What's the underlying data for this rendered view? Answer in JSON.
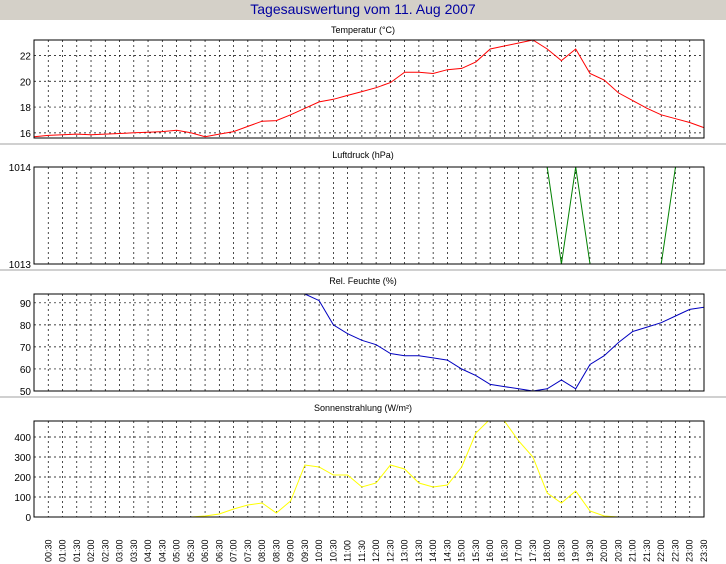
{
  "window": {
    "title": "Tagesauswertung vom 11. Aug 2007"
  },
  "chart_data": [
    {
      "type": "line",
      "title": "Temperatur (°C)",
      "ylim": [
        15.6,
        23.2
      ],
      "yticks": [
        16,
        18,
        20,
        22
      ],
      "grid": true,
      "series": [
        {
          "color": "#ff0000",
          "x": [
            "00:00",
            "00:30",
            "01:00",
            "01:30",
            "02:00",
            "02:30",
            "03:00",
            "03:30",
            "04:00",
            "04:30",
            "05:00",
            "05:30",
            "06:00",
            "06:30",
            "07:00",
            "07:30",
            "08:00",
            "08:30",
            "09:00",
            "09:30",
            "10:00",
            "10:30",
            "11:00",
            "11:30",
            "12:00",
            "12:30",
            "13:00",
            "13:30",
            "14:00",
            "14:30",
            "15:00",
            "15:30",
            "16:00",
            "17:30",
            "18:00",
            "18:30",
            "19:00",
            "19:30",
            "20:00",
            "20:30",
            "21:00",
            "21:30",
            "22:00",
            "22:30",
            "23:00",
            "23:30"
          ],
          "values": [
            15.7,
            15.8,
            15.85,
            15.9,
            15.85,
            15.9,
            15.95,
            16.0,
            16.05,
            16.1,
            16.2,
            16.0,
            15.7,
            15.9,
            16.1,
            16.5,
            16.9,
            16.95,
            17.4,
            17.9,
            18.4,
            18.6,
            18.9,
            19.2,
            19.5,
            19.9,
            20.7,
            20.7,
            20.6,
            20.9,
            21.0,
            21.5,
            22.5,
            23.2,
            22.5,
            21.6,
            22.5,
            20.6,
            20.1,
            19.1,
            18.5,
            17.9,
            17.4,
            17.1,
            16.8,
            16.4
          ]
        }
      ]
    },
    {
      "type": "line",
      "title": "Luftdruck (hPa)",
      "ylim": [
        1013,
        1014
      ],
      "yticks": [
        1013,
        1014
      ],
      "grid": true,
      "series": [
        {
          "color": "#008000",
          "x": [
            "18:00",
            "18:30",
            "19:00",
            "19:30",
            "22:00",
            "22:30"
          ],
          "values": [
            1014,
            1013,
            1014,
            1013,
            1013,
            1014
          ]
        }
      ]
    },
    {
      "type": "line",
      "title": "Rel. Feuchte (%)",
      "ylim": [
        50,
        94
      ],
      "yticks": [
        50,
        60,
        70,
        80,
        90
      ],
      "grid": true,
      "series": [
        {
          "color": "#0000c0",
          "x": [
            "09:30",
            "10:00",
            "10:30",
            "11:00",
            "11:30",
            "12:00",
            "12:30",
            "13:00",
            "13:30",
            "14:00",
            "14:30",
            "15:00",
            "15:30",
            "16:00",
            "16:30",
            "17:00",
            "17:30",
            "18:00",
            "18:30",
            "19:00",
            "19:30",
            "20:00",
            "20:30",
            "21:00",
            "21:30",
            "22:00",
            "22:30",
            "23:00",
            "23:30"
          ],
          "values": [
            94,
            91,
            80,
            76,
            73,
            71,
            67,
            66,
            66,
            65,
            64,
            60,
            57,
            53,
            52,
            51,
            50,
            51,
            55,
            51,
            62,
            66,
            72,
            77,
            79,
            81,
            84,
            87,
            88
          ]
        }
      ]
    },
    {
      "type": "line",
      "title": "Sonnenstrahlung (W/m²)",
      "ylim": [
        0,
        480
      ],
      "yticks": [
        0,
        100,
        200,
        300,
        400
      ],
      "grid": true,
      "series": [
        {
          "color": "#ffff00",
          "x": [
            "05:30",
            "06:00",
            "06:30",
            "07:00",
            "07:30",
            "08:00",
            "08:30",
            "09:00",
            "09:30",
            "10:00",
            "10:30",
            "11:00",
            "11:30",
            "12:00",
            "12:30",
            "13:00",
            "13:30",
            "14:00",
            "14:30",
            "15:00",
            "15:30",
            "16:00",
            "16:30",
            "17:00",
            "17:30",
            "18:00",
            "18:30",
            "19:00",
            "19:30",
            "20:00",
            "20:30"
          ],
          "values": [
            0,
            5,
            15,
            40,
            60,
            70,
            20,
            80,
            260,
            250,
            210,
            210,
            150,
            170,
            260,
            240,
            170,
            150,
            160,
            250,
            420,
            490,
            480,
            380,
            300,
            120,
            70,
            130,
            30,
            5,
            0
          ]
        }
      ]
    }
  ],
  "x_axis": {
    "ticks": [
      "00:30",
      "01:00",
      "01:30",
      "02:00",
      "02:30",
      "03:00",
      "03:30",
      "04:00",
      "04:30",
      "05:00",
      "05:30",
      "06:00",
      "06:30",
      "07:00",
      "07:30",
      "08:00",
      "08:30",
      "09:00",
      "09:30",
      "10:00",
      "10:30",
      "11:00",
      "11:30",
      "12:00",
      "12:30",
      "13:00",
      "13:30",
      "14:00",
      "14:30",
      "15:00",
      "15:30",
      "16:00",
      "16:30",
      "17:00",
      "17:30",
      "18:00",
      "18:30",
      "19:00",
      "19:30",
      "20:00",
      "20:30",
      "21:00",
      "21:30",
      "22:00",
      "22:30",
      "23:00",
      "23:30"
    ]
  }
}
